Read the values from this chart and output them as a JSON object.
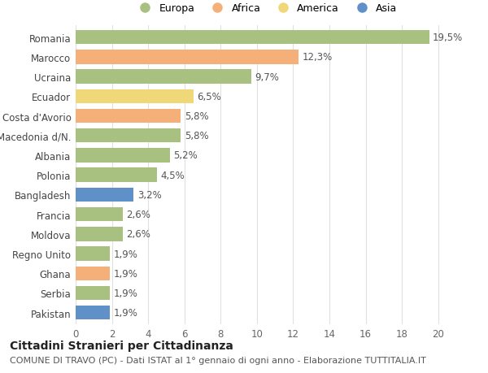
{
  "categories": [
    "Romania",
    "Marocco",
    "Ucraina",
    "Ecuador",
    "Costa d'Avorio",
    "Macedonia d/N.",
    "Albania",
    "Polonia",
    "Bangladesh",
    "Francia",
    "Moldova",
    "Regno Unito",
    "Ghana",
    "Serbia",
    "Pakistan"
  ],
  "values": [
    19.5,
    12.3,
    9.7,
    6.5,
    5.8,
    5.8,
    5.2,
    4.5,
    3.2,
    2.6,
    2.6,
    1.9,
    1.9,
    1.9,
    1.9
  ],
  "labels": [
    "19,5%",
    "12,3%",
    "9,7%",
    "6,5%",
    "5,8%",
    "5,8%",
    "5,2%",
    "4,5%",
    "3,2%",
    "2,6%",
    "2,6%",
    "1,9%",
    "1,9%",
    "1,9%",
    "1,9%"
  ],
  "continents": [
    "Europa",
    "Africa",
    "Europa",
    "America",
    "Africa",
    "Europa",
    "Europa",
    "Europa",
    "Asia",
    "Europa",
    "Europa",
    "Europa",
    "Africa",
    "Europa",
    "Asia"
  ],
  "colors": {
    "Europa": "#a8c080",
    "Africa": "#f5b07a",
    "America": "#f0d878",
    "Asia": "#6090c8"
  },
  "xlim": [
    0,
    21
  ],
  "xticks": [
    0,
    2,
    4,
    6,
    8,
    10,
    12,
    14,
    16,
    18,
    20
  ],
  "background_color": "#ffffff",
  "grid_color": "#e0e0e0",
  "title": "Cittadini Stranieri per Cittadinanza",
  "subtitle": "COMUNE DI TRAVO (PC) - Dati ISTAT al 1° gennaio di ogni anno - Elaborazione TUTTITALIA.IT",
  "bar_height": 0.72,
  "label_fontsize": 8.5,
  "tick_label_fontsize": 8.5,
  "title_fontsize": 10,
  "subtitle_fontsize": 8,
  "legend_entries": [
    "Europa",
    "Africa",
    "America",
    "Asia"
  ]
}
